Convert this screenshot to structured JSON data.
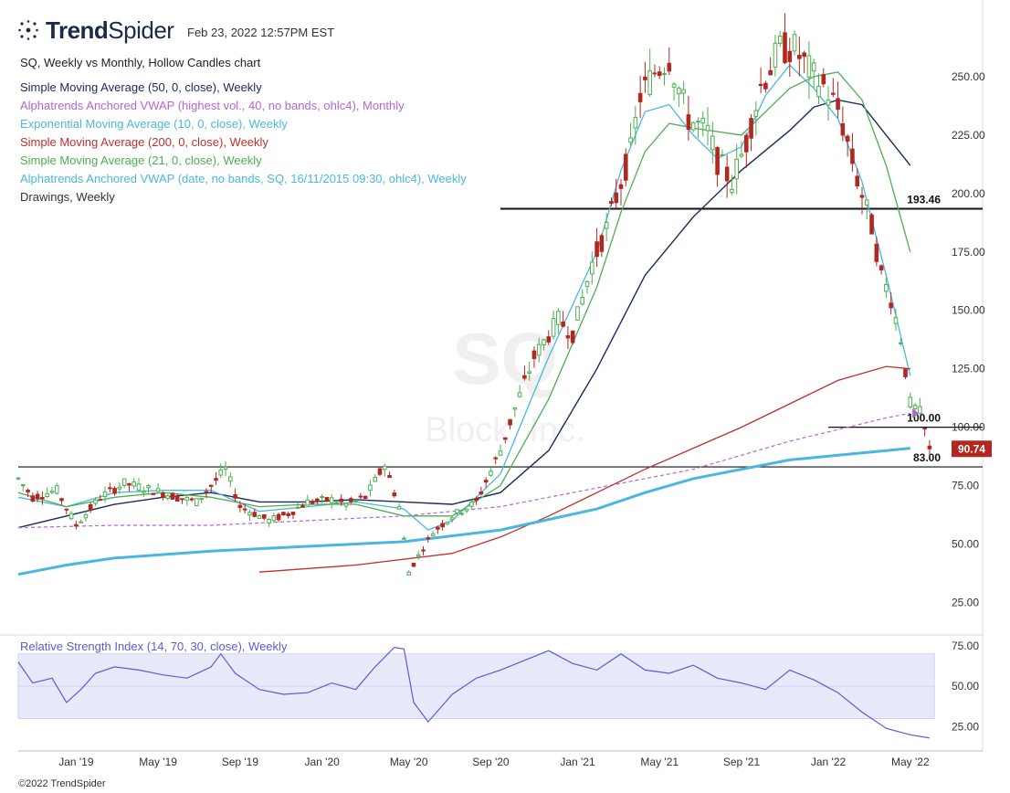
{
  "header": {
    "brand_bold": "Trend",
    "brand_light": "Spider",
    "timestamp": "Feb 23, 2022 12:57PM EST",
    "chart_title": "SQ, Weekly vs Monthly, Hollow Candles chart"
  },
  "legend": [
    {
      "label": "Simple Moving Average (50, 0, close), Weekly",
      "color": "#1b2a5c"
    },
    {
      "label": "Alphatrends Anchored VWAP (highest vol., 40, no bands, ohlc4), Monthly",
      "color": "#b565d6"
    },
    {
      "label": "Exponential Moving Average (10, 0, close), Weekly",
      "color": "#4bb7e0"
    },
    {
      "label": "Simple Moving Average (200, 0, close), Weekly",
      "color": "#c0302b"
    },
    {
      "label": "Simple Moving Average (21, 0, close), Weekly",
      "color": "#4caf50"
    },
    {
      "label": "Alphatrends Anchored VWAP (date, no bands, SQ, 16/11/2015 09:30, ohlc4), Weekly",
      "color": "#4bb7e0"
    },
    {
      "label": "Drawings, Weekly",
      "color": "#333333"
    }
  ],
  "rsi_label": "Relative Strength Index (14, 70, 30, close), Weekly",
  "copyright": "©2022 TrendSpider",
  "watermark": {
    "ticker": "SQ",
    "name": "Block, Inc."
  },
  "colors": {
    "up": "#4caf50",
    "down": "#b0281f",
    "rsi": "#5b5bd6",
    "rsi_band": "#e8eafc"
  },
  "chart_data": {
    "type": "candlestick",
    "title": "SQ, Weekly vs Monthly, Hollow Candles chart",
    "ylim": [
      15,
      275
    ],
    "yticks": [
      "25.00",
      "50.00",
      "75.00",
      "100.00",
      "125.00",
      "150.00",
      "175.00",
      "200.00",
      "225.00",
      "250.00"
    ],
    "xticks": [
      "Jan '19",
      "May '19",
      "Sep '19",
      "Jan '20",
      "May '20",
      "Sep '20",
      "Jan '21",
      "May '21",
      "Sep '21",
      "Jan '22",
      "May '22"
    ],
    "last_price": "90.74",
    "levels": [
      {
        "label": "193.46",
        "value": 193.46
      },
      {
        "label": "100.00",
        "value": 100
      },
      {
        "label": "83.00",
        "value": 83
      }
    ],
    "price_path": [
      [
        0,
        78
      ],
      [
        3,
        70
      ],
      [
        8,
        73
      ],
      [
        12,
        58
      ],
      [
        17,
        70
      ],
      [
        22,
        76
      ],
      [
        28,
        73
      ],
      [
        33,
        70
      ],
      [
        37,
        68
      ],
      [
        40,
        75
      ],
      [
        43,
        82
      ],
      [
        46,
        66
      ],
      [
        52,
        60
      ],
      [
        56,
        63
      ],
      [
        60,
        68
      ],
      [
        65,
        69
      ],
      [
        68,
        67
      ],
      [
        72,
        70
      ],
      [
        76,
        84
      ],
      [
        79,
        66
      ],
      [
        81,
        38
      ],
      [
        83,
        45
      ],
      [
        86,
        55
      ],
      [
        90,
        62
      ],
      [
        95,
        68
      ],
      [
        100,
        90
      ],
      [
        103,
        108
      ],
      [
        107,
        130
      ],
      [
        112,
        146
      ],
      [
        115,
        140
      ],
      [
        119,
        170
      ],
      [
        122,
        185
      ],
      [
        125,
        205
      ],
      [
        127,
        218
      ],
      [
        129,
        242
      ],
      [
        132,
        252
      ],
      [
        135,
        258
      ],
      [
        139,
        232
      ],
      [
        143,
        226
      ],
      [
        145,
        214
      ],
      [
        148,
        205
      ],
      [
        151,
        222
      ],
      [
        154,
        246
      ],
      [
        158,
        262
      ],
      [
        161,
        262
      ],
      [
        165,
        250
      ],
      [
        167,
        246
      ],
      [
        170,
        236
      ],
      [
        172,
        222
      ],
      [
        174,
        206
      ],
      [
        177,
        186
      ],
      [
        179,
        165
      ],
      [
        181,
        155
      ],
      [
        183,
        138
      ],
      [
        185,
        110
      ],
      [
        187,
        106
      ],
      [
        189,
        91
      ]
    ],
    "series": [
      {
        "name": "Simple Moving Average (50, 0, close), Weekly",
        "x": [
          0,
          10,
          20,
          30,
          40,
          50,
          60,
          70,
          80,
          90,
          100,
          110,
          120,
          130,
          140,
          150,
          160,
          165,
          170,
          175,
          180,
          185
        ],
        "values": [
          57,
          62,
          67,
          70,
          72,
          68,
          68,
          69,
          68,
          67,
          72,
          90,
          125,
          165,
          190,
          210,
          227,
          237,
          240,
          238,
          225,
          212
        ]
      },
      {
        "name": "Alphatrends Anchored VWAP (highest vol., 40, no bands, ohlc4), Monthly",
        "x": [
          0,
          20,
          40,
          60,
          80,
          100,
          110,
          120,
          130,
          140,
          150,
          160,
          170,
          180,
          185
        ],
        "values": [
          57,
          58,
          58,
          60,
          62,
          66,
          70,
          74,
          78,
          82,
          88,
          94,
          99,
          104,
          106
        ]
      },
      {
        "name": "Exponential Moving Average (10, 0, close), Weekly",
        "x": [
          0,
          10,
          20,
          30,
          40,
          50,
          60,
          70,
          80,
          85,
          90,
          100,
          110,
          120,
          125,
          130,
          135,
          140,
          145,
          150,
          155,
          160,
          165,
          170,
          175,
          180,
          185
        ],
        "values": [
          70,
          66,
          72,
          73,
          73,
          64,
          66,
          68,
          65,
          56,
          60,
          80,
          130,
          175,
          210,
          235,
          238,
          225,
          215,
          220,
          242,
          255,
          245,
          232,
          205,
          165,
          122
        ]
      },
      {
        "name": "Simple Moving Average (200, 0, close), Weekly",
        "x": [
          50,
          70,
          90,
          100,
          110,
          120,
          130,
          140,
          150,
          160,
          170,
          180,
          185
        ],
        "values": [
          38,
          41,
          46,
          53,
          62,
          72,
          82,
          91,
          100,
          110,
          120,
          126,
          125
        ]
      },
      {
        "name": "Simple Moving Average (21, 0, close), Weekly",
        "x": [
          0,
          10,
          20,
          30,
          40,
          50,
          60,
          70,
          80,
          90,
          100,
          110,
          120,
          125,
          130,
          135,
          140,
          150,
          160,
          165,
          170,
          175,
          180,
          185
        ],
        "values": [
          72,
          66,
          70,
          72,
          70,
          66,
          67,
          67,
          62,
          62,
          75,
          112,
          160,
          192,
          218,
          230,
          228,
          225,
          245,
          250,
          252,
          240,
          212,
          175
        ]
      },
      {
        "name": "Alphatrends Anchored VWAP (date, no bands, SQ, 16/11/2015 09:30, ohlc4), Weekly",
        "x": [
          0,
          10,
          20,
          40,
          60,
          80,
          100,
          120,
          130,
          140,
          150,
          160,
          170,
          180,
          185
        ],
        "values": [
          37,
          41,
          44,
          47,
          49,
          51,
          56,
          65,
          72,
          78,
          82,
          86,
          88,
          90,
          91
        ]
      }
    ],
    "rsi": {
      "ylim": [
        10,
        80
      ],
      "yticks": [
        "25.00",
        "50.00",
        "75.00"
      ],
      "band": [
        30,
        70
      ],
      "x": [
        0,
        3,
        7,
        10,
        13,
        16,
        20,
        25,
        30,
        35,
        40,
        42,
        45,
        50,
        55,
        60,
        65,
        70,
        74,
        78,
        80,
        82,
        85,
        90,
        95,
        100,
        105,
        110,
        115,
        120,
        125,
        130,
        135,
        140,
        145,
        150,
        155,
        160,
        165,
        170,
        175,
        180,
        185,
        189
      ],
      "values": [
        65,
        52,
        55,
        40,
        48,
        58,
        62,
        60,
        57,
        55,
        62,
        70,
        58,
        48,
        45,
        46,
        52,
        48,
        62,
        74,
        73,
        40,
        28,
        45,
        55,
        60,
        66,
        72,
        64,
        60,
        70,
        60,
        58,
        63,
        55,
        52,
        48,
        60,
        54,
        46,
        34,
        24,
        20,
        18
      ]
    }
  }
}
